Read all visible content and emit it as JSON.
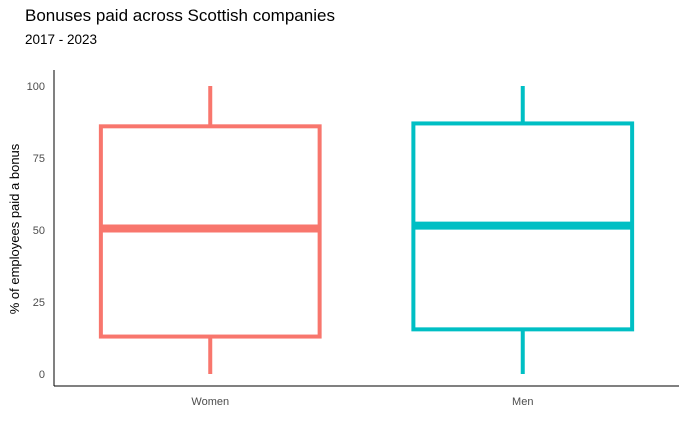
{
  "chart_data": {
    "type": "boxplot",
    "title": "Bonuses paid across Scottish companies",
    "subtitle": "2017 - 2023",
    "xlabel": "",
    "ylabel": "% of employees paid a bonus",
    "ylim": [
      -4,
      105
    ],
    "yticks": [
      0,
      25,
      50,
      75,
      100
    ],
    "grid": false,
    "legend": "none",
    "categories": [
      "Women",
      "Men"
    ],
    "boxes": [
      {
        "category": "Women",
        "min": 0,
        "q1": 13,
        "median": 50.5,
        "q3": 86,
        "max": 100,
        "color": "#F8766D"
      },
      {
        "category": "Men",
        "min": 0,
        "q1": 15.5,
        "median": 51.5,
        "q3": 87,
        "max": 100,
        "color": "#00BFC4"
      }
    ]
  }
}
